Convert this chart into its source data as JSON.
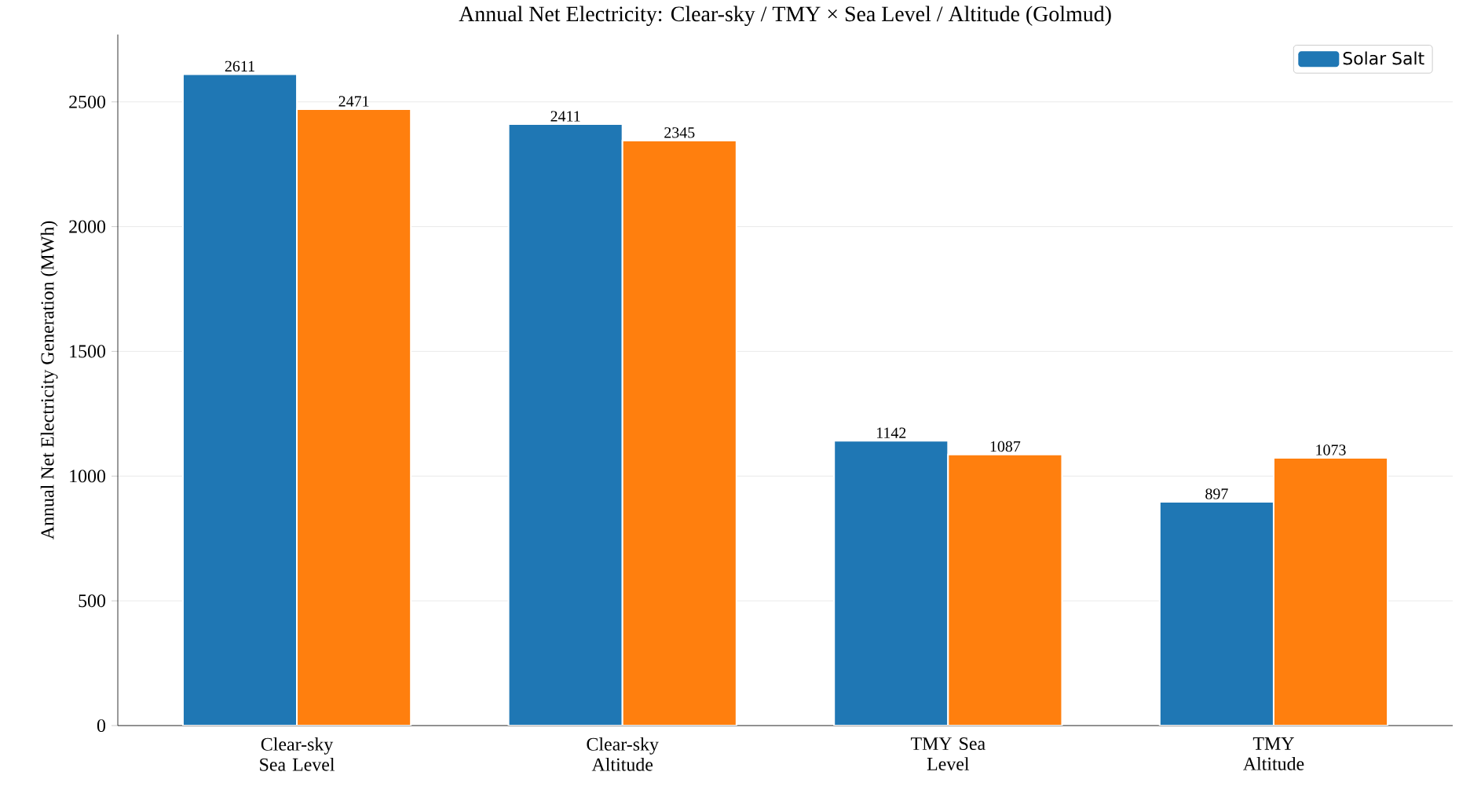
{
  "chart_data": {
    "type": "bar",
    "title": "Annual Net Electricity: Clear-sky / TMY × Sea Level / Altitude (Golmud)",
    "ylabel": "Annual Net Electricity Generation (MWh)",
    "categories": [
      "Clear-sky Sea Level",
      "Clear-sky Altitude",
      "TMY Sea Level",
      "TMY Altitude"
    ],
    "series": [
      {
        "name": "Solar Salt",
        "color": "#1f77b4",
        "values": [
          2611,
          2411,
          1142,
          897
        ]
      },
      {
        "color": "#ff7f0e",
        "values": [
          2471,
          2345,
          1087,
          1073
        ]
      }
    ],
    "ylim": [
      0,
      2770
    ],
    "yticks": [
      0,
      500,
      1000,
      1500,
      2000,
      2500
    ],
    "grid": "y",
    "legend": "top right",
    "data_labels": true
  }
}
